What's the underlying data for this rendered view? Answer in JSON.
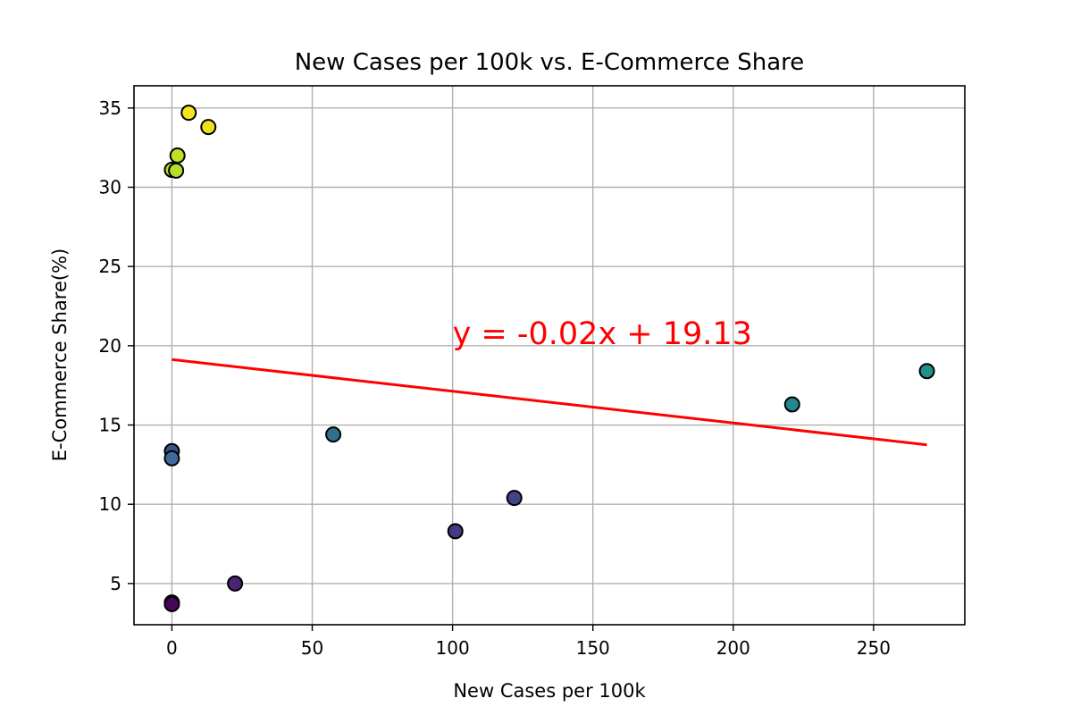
{
  "chart_data": {
    "type": "scatter",
    "title": "New Cases per 100k vs. E-Commerce Share",
    "xlabel": "New Cases per 100k",
    "ylabel": "E-Commerce Share(%)",
    "xlim": [
      -13.5,
      282.5
    ],
    "ylim": [
      2.4,
      36.4
    ],
    "xticks": [
      0,
      50,
      100,
      150,
      200,
      250
    ],
    "yticks": [
      5,
      10,
      15,
      20,
      25,
      30,
      35
    ],
    "grid": true,
    "points": [
      {
        "x": 6,
        "y": 34.7,
        "color": "#f1e51d"
      },
      {
        "x": 13,
        "y": 33.8,
        "color": "#e8e419"
      },
      {
        "x": 2,
        "y": 32.0,
        "color": "#c2df23"
      },
      {
        "x": 0,
        "y": 31.1,
        "color": "#addc30"
      },
      {
        "x": 1.5,
        "y": 31.05,
        "color": "#b5de2b"
      },
      {
        "x": 269,
        "y": 18.4,
        "color": "#21918c"
      },
      {
        "x": 221,
        "y": 16.3,
        "color": "#24868e"
      },
      {
        "x": 57.5,
        "y": 14.4,
        "color": "#2c728e"
      },
      {
        "x": 0,
        "y": 13.35,
        "color": "#3b528b"
      },
      {
        "x": 0,
        "y": 12.9,
        "color": "#3e6a9a"
      },
      {
        "x": 122,
        "y": 10.4,
        "color": "#414487"
      },
      {
        "x": 101,
        "y": 8.3,
        "color": "#443983"
      },
      {
        "x": 22.5,
        "y": 5.0,
        "color": "#482576"
      },
      {
        "x": 0,
        "y": 3.8,
        "color": "#440154"
      },
      {
        "x": 0,
        "y": 3.7,
        "color": "#46085c"
      }
    ],
    "fit_line": {
      "slope": -0.02,
      "intercept": 19.13,
      "x_range": [
        0,
        269
      ],
      "color": "#ff0000",
      "label": "y = -0.02x + 19.13",
      "label_anchor": {
        "x": 100,
        "y": 20.1
      }
    }
  }
}
